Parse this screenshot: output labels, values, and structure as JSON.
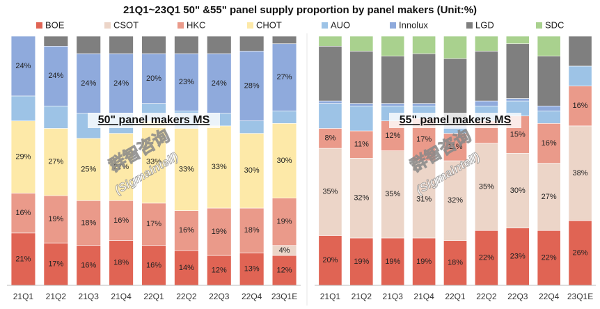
{
  "chart_data": [
    {
      "type": "stacked_bar",
      "title": "21Q1~23Q1 50\" &55\" panel supply proportion  by panel makers (Unit:%)",
      "annotation": "50\" panel makers MS",
      "watermark": [
        "群智咨询",
        "(Sigmaintell)"
      ],
      "categories": [
        "21Q1",
        "21Q2",
        "21Q3",
        "21Q4",
        "22Q1",
        "22Q2",
        "22Q3",
        "22Q4",
        "23Q1E"
      ],
      "ylim": [
        0,
        100
      ],
      "series": [
        {
          "name": "BOE",
          "color": "#e06454",
          "values": [
            21,
            17,
            16,
            18,
            16,
            14,
            12,
            13,
            12
          ],
          "value_labels": [
            "21%",
            "17%",
            "16%",
            "18%",
            "16%",
            "14%",
            "12%",
            "13%",
            "12%"
          ]
        },
        {
          "name": "CSOT",
          "color": "#ecd5c8",
          "values": [
            0,
            0,
            0,
            0,
            0,
            0,
            0,
            0,
            4
          ],
          "value_labels": [
            null,
            null,
            null,
            null,
            null,
            null,
            null,
            null,
            "4%"
          ]
        },
        {
          "name": "HKC",
          "color": "#ea9a8a",
          "values": [
            16,
            19,
            18,
            16,
            17,
            16,
            19,
            18,
            19
          ],
          "value_labels": [
            "16%",
            "19%",
            "18%",
            "16%",
            "17%",
            "16%",
            "19%",
            "18%",
            "19%"
          ]
        },
        {
          "name": "CHOT",
          "color": "#fde9a8",
          "values": [
            29,
            27,
            25,
            27,
            33,
            33,
            33,
            30,
            30
          ],
          "value_labels": [
            "29%",
            "27%",
            "25%",
            "27%",
            "33%",
            "33%",
            "33%",
            "30%",
            "30%"
          ]
        },
        {
          "name": "AUO",
          "color": "#9dc3e6",
          "values": [
            10,
            9,
            10,
            8,
            7,
            7,
            5,
            5,
            5
          ]
        },
        {
          "name": "Innolux",
          "color": "#8faadc",
          "values": [
            24,
            24,
            24,
            24,
            20,
            23,
            24,
            28,
            27
          ],
          "value_labels": [
            "24%",
            "24%",
            "24%",
            "24%",
            "20%",
            "23%",
            "24%",
            "28%",
            "27%"
          ]
        },
        {
          "name": "LGD",
          "color": "#7f7f7f",
          "values": [
            0,
            4,
            7,
            7,
            7,
            7,
            7,
            6,
            3
          ]
        },
        {
          "name": "SDC",
          "color": "#a9d18e",
          "values": [
            0,
            0,
            0,
            0,
            0,
            0,
            0,
            0,
            0
          ]
        }
      ]
    },
    {
      "type": "stacked_bar",
      "annotation": "55\" panel makers MS",
      "watermark": [
        "群智咨询",
        "(Sigmaintell)"
      ],
      "categories": [
        "21Q1",
        "21Q2",
        "21Q3",
        "21Q4",
        "22Q1",
        "22Q2",
        "22Q3",
        "22Q4",
        "23Q1E"
      ],
      "ylim": [
        0,
        100
      ],
      "series": [
        {
          "color": "#e06454",
          "values": [
            20,
            19,
            19,
            19,
            18,
            22,
            23,
            22,
            26
          ],
          "value_labels": [
            "20%",
            "19%",
            "19%",
            "19%",
            "18%",
            "22%",
            "23%",
            "22%",
            "26%"
          ]
        },
        {
          "color": "#ecd5c8",
          "values": [
            35,
            32,
            35,
            31,
            32,
            35,
            30,
            27,
            38
          ],
          "value_labels": [
            "35%",
            "32%",
            "35%",
            "31%",
            "32%",
            "35%",
            "30%",
            "27%",
            "38%"
          ]
        },
        {
          "color": "#ea9a8a",
          "values": [
            8,
            11,
            12,
            17,
            11,
            9,
            15,
            16,
            16
          ],
          "value_labels": [
            "8%",
            "11%",
            "12%",
            "17%",
            "11%",
            null,
            "15%",
            "16%",
            "16%"
          ]
        },
        {
          "color": "#fde9a8",
          "values": [
            0,
            0,
            0,
            0,
            0,
            0,
            0,
            0,
            0
          ]
        },
        {
          "color": "#9dc3e6",
          "values": [
            10,
            10,
            6,
            5,
            2,
            6,
            6,
            5,
            8
          ]
        },
        {
          "color": "#8faadc",
          "values": [
            1,
            1,
            1,
            1,
            1,
            2,
            1,
            2,
            0
          ]
        },
        {
          "color": "#7f7f7f",
          "values": [
            22,
            21,
            19,
            20,
            27,
            20,
            22,
            20,
            12
          ]
        },
        {
          "color": "#a9d18e",
          "values": [
            4,
            6,
            8,
            7,
            9,
            6,
            3,
            8,
            0
          ]
        }
      ]
    }
  ]
}
